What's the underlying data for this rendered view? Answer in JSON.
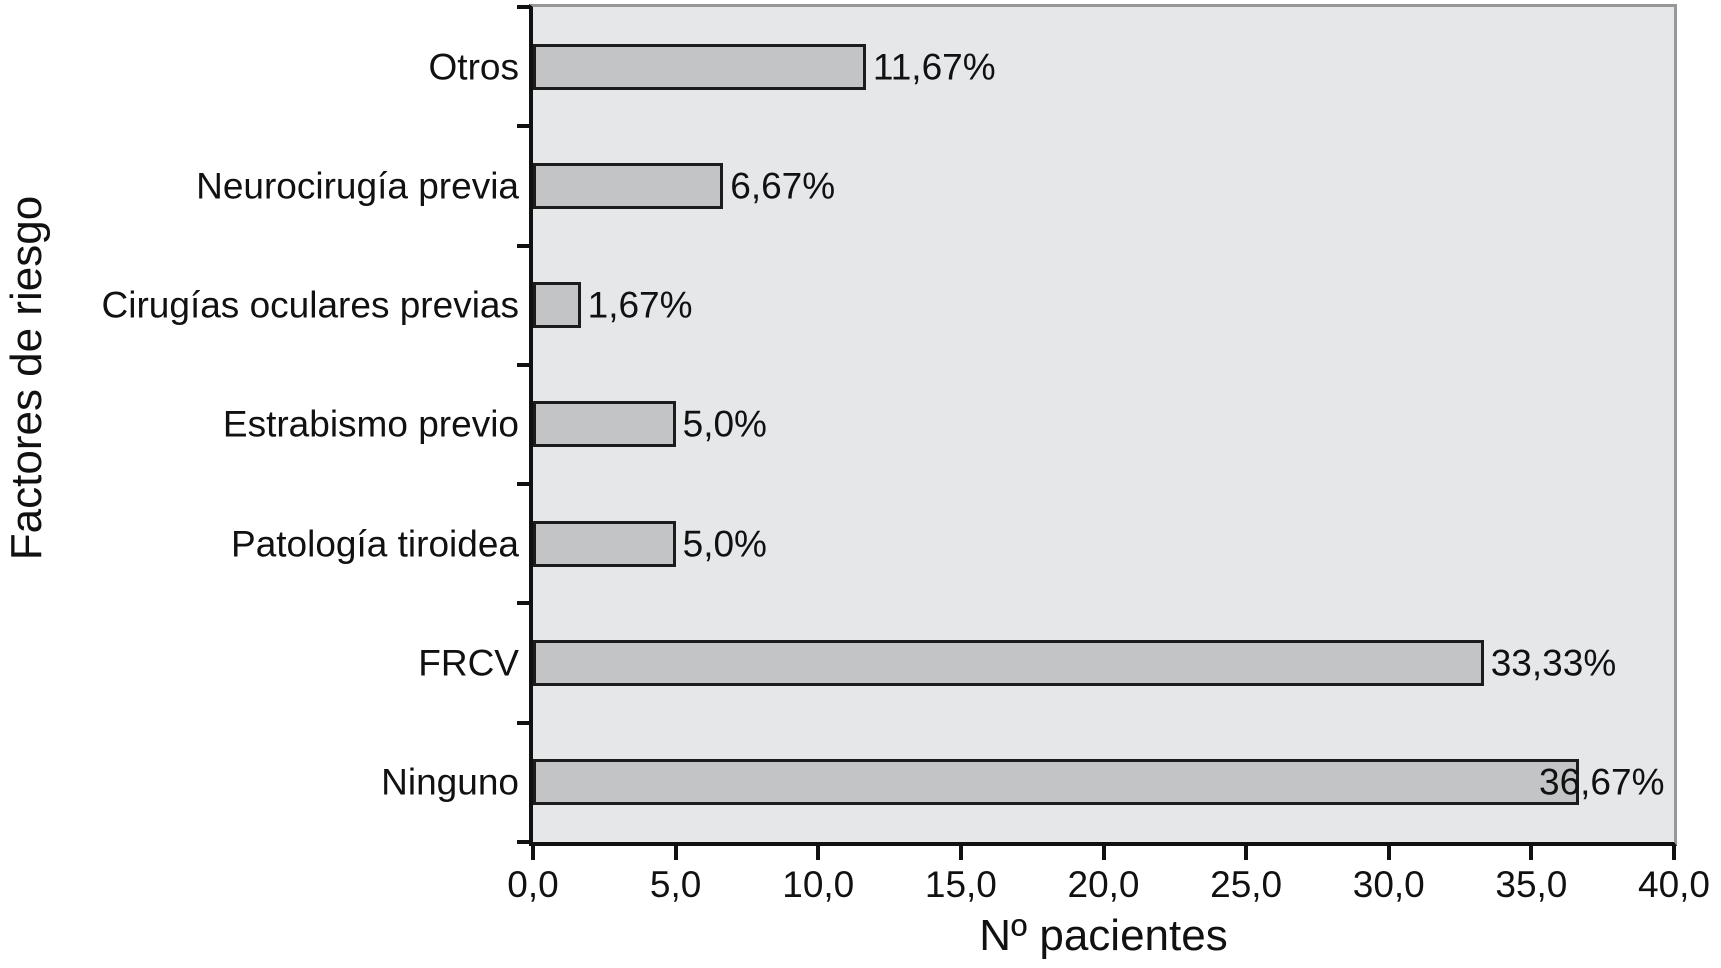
{
  "chart_data": {
    "type": "bar",
    "orientation": "horizontal",
    "xlabel": "Nº pacientes",
    "ylabel": "Factores de riesgo",
    "xlim": [
      0,
      40
    ],
    "xticks": [
      0,
      5,
      10,
      15,
      20,
      25,
      30,
      35,
      40
    ],
    "xtick_labels": [
      "0,0",
      "5,0",
      "10,0",
      "15,0",
      "20,0",
      "25,0",
      "30,0",
      "35,0",
      "40,0"
    ],
    "categories": [
      "Otros",
      "Neurocirugía previa",
      "Cirugías oculares previas",
      "Estrabismo previo",
      "Patología tiroidea",
      "FRCV",
      "Ninguno"
    ],
    "values": [
      11.67,
      6.67,
      1.67,
      5.0,
      5.0,
      33.33,
      36.67
    ],
    "value_labels": [
      "11,67%",
      "6,67%",
      "1,67%",
      "5,0%",
      "5,0%",
      "33,33%",
      "36,67%"
    ],
    "grid": false,
    "legend": null,
    "colors": {
      "bar_fill": "#c3c4c6",
      "bar_border": "#1c1c1c",
      "plot_background": "#e6e7e9",
      "axis_line": "#111111",
      "outer_border": "#96989a",
      "text": "#111111",
      "page_background": "#ffffff"
    }
  }
}
